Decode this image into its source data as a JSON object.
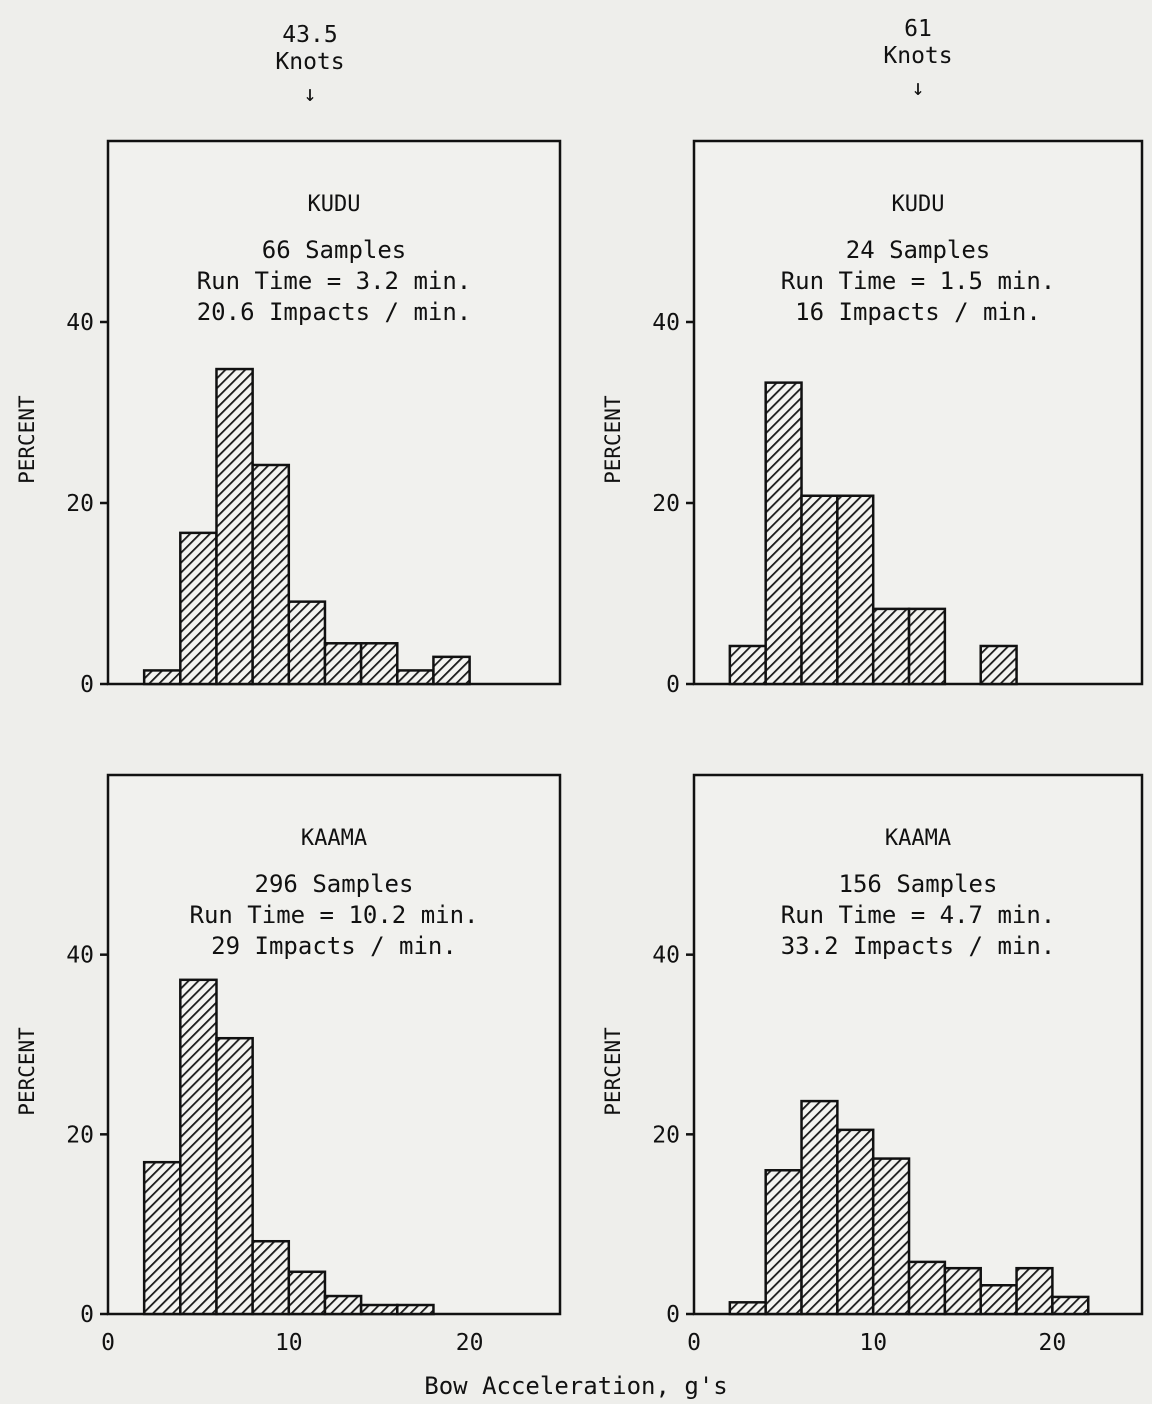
{
  "columns": [
    {
      "speed": "43.5",
      "unit": "Knots",
      "arrow": "↓"
    },
    {
      "speed": "61",
      "unit": "Knots",
      "arrow": "↓"
    }
  ],
  "xlabel": "Bow Acceleration, g's",
  "chart_data": [
    {
      "type": "bar",
      "panel": "top-left",
      "title": "KUDU",
      "annotations": [
        "66 Samples",
        "Run Time = 3.2 min.",
        "20.6 Impacts / min."
      ],
      "ylabel": "PERCENT",
      "yticks": [
        0,
        20,
        40
      ],
      "xticks": [],
      "xlim": [
        0,
        25
      ],
      "ylim": [
        0,
        60
      ],
      "bins": [
        [
          2,
          4
        ],
        [
          4,
          6
        ],
        [
          6,
          8
        ],
        [
          8,
          10
        ],
        [
          10,
          12
        ],
        [
          12,
          14
        ],
        [
          14,
          16
        ],
        [
          16,
          18
        ],
        [
          18,
          20
        ]
      ],
      "values": [
        1.5,
        16.7,
        34.8,
        24.2,
        9.1,
        4.5,
        4.5,
        1.5,
        3.0
      ],
      "fill": "#2a2a2a"
    },
    {
      "type": "bar",
      "panel": "top-right",
      "title": "KUDU",
      "annotations": [
        "24 Samples",
        "Run Time = 1.5 min.",
        "16 Impacts / min."
      ],
      "ylabel": "PERCENT",
      "yticks": [
        0,
        20,
        40
      ],
      "xticks": [],
      "xlim": [
        0,
        25
      ],
      "ylim": [
        0,
        60
      ],
      "bins": [
        [
          2,
          4
        ],
        [
          4,
          6
        ],
        [
          6,
          8
        ],
        [
          8,
          10
        ],
        [
          10,
          12
        ],
        [
          12,
          14
        ],
        [
          14,
          16
        ],
        [
          16,
          18
        ],
        [
          18,
          20
        ]
      ],
      "values": [
        4.2,
        33.3,
        20.8,
        20.8,
        8.3,
        8.3,
        0,
        4.2,
        0
      ],
      "fill": "#2a2a2a"
    },
    {
      "type": "bar",
      "panel": "bottom-left",
      "title": "KAAMA",
      "annotations": [
        "296 Samples",
        "Run Time = 10.2 min.",
        "29 Impacts / min."
      ],
      "ylabel": "PERCENT",
      "yticks": [
        0,
        20,
        40
      ],
      "xticks": [
        0,
        10,
        20
      ],
      "xlim": [
        0,
        25
      ],
      "ylim": [
        0,
        60
      ],
      "bins": [
        [
          2,
          4
        ],
        [
          4,
          6
        ],
        [
          6,
          8
        ],
        [
          8,
          10
        ],
        [
          10,
          12
        ],
        [
          12,
          14
        ],
        [
          14,
          16
        ],
        [
          16,
          18
        ],
        [
          18,
          20
        ]
      ],
      "values": [
        16.9,
        37.2,
        30.7,
        8.1,
        4.7,
        2.0,
        1.0,
        1.0,
        0
      ],
      "fill": "#2a2a2a"
    },
    {
      "type": "bar",
      "panel": "bottom-right",
      "title": "KAAMA",
      "annotations": [
        "156 Samples",
        "Run Time = 4.7 min.",
        "33.2 Impacts / min."
      ],
      "ylabel": "PERCENT",
      "yticks": [
        0,
        20,
        40
      ],
      "xticks": [
        0,
        10,
        20
      ],
      "xlim": [
        0,
        25
      ],
      "ylim": [
        0,
        60
      ],
      "bins": [
        [
          2,
          4
        ],
        [
          4,
          6
        ],
        [
          6,
          8
        ],
        [
          8,
          10
        ],
        [
          10,
          12
        ],
        [
          12,
          14
        ],
        [
          14,
          16
        ],
        [
          16,
          18
        ],
        [
          18,
          20
        ],
        [
          20,
          22
        ]
      ],
      "values": [
        1.3,
        16.0,
        23.7,
        20.5,
        17.3,
        5.8,
        5.1,
        3.2,
        5.1,
        1.9
      ],
      "fill": "#2a2a2a"
    }
  ]
}
